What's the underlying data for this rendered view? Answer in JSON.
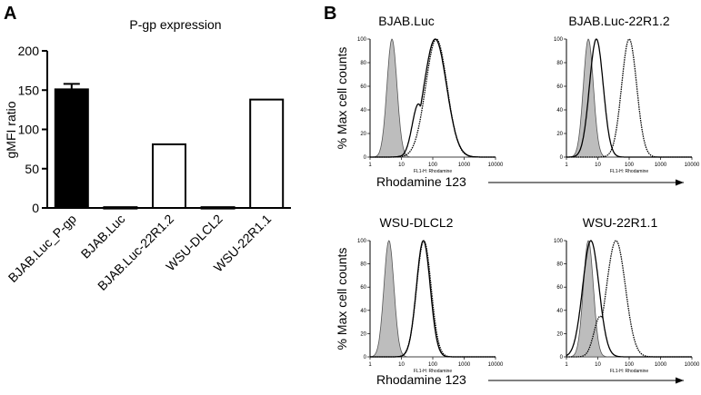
{
  "panels": {
    "a": "A",
    "b": "B"
  },
  "chart_data": [
    {
      "type": "bar",
      "title": "P-gp expression",
      "ylabel": "gMFI ratio",
      "xlabel": "",
      "categories": [
        "BJAB.Luc_P-gp",
        "BJAB.Luc",
        "BJAB.Luc-22R1.2",
        "WSU-DLCL2",
        "WSU-22R1.1"
      ],
      "values": [
        151,
        1,
        81,
        1,
        138
      ],
      "error": [
        7,
        0,
        0,
        0,
        0
      ],
      "fills": [
        "#000000",
        "#ffffff",
        "#ffffff",
        "#ffffff",
        "#ffffff"
      ],
      "ylim": [
        0,
        200
      ],
      "yticks": [
        0,
        50,
        100,
        150,
        200
      ],
      "grid": false
    },
    {
      "type": "area",
      "subtype": "flow-cytometry-histograms",
      "x_scale": "log",
      "xlim": [
        1,
        10000
      ],
      "xticks": [
        "1",
        "10",
        "100",
        "1000",
        "10000"
      ],
      "ylim": [
        0,
        100
      ],
      "yticks": [
        "0",
        "20",
        "40",
        "60",
        "80",
        "100"
      ],
      "ylabel": "% Max cell counts",
      "xlabel": "Rhodamine 123",
      "inner_xlabel": "FL1-H: Rhodamine",
      "colors": {
        "shaded": "#bdbdbd",
        "line": "#000000"
      },
      "histograms": [
        {
          "title": "BJAB.Luc",
          "shaded_peak": 5,
          "solid_peak": 120,
          "solid_width": 0.36,
          "shoulder": {
            "x": 35,
            "level": 0.45
          },
          "dotted_peak": 130,
          "dotted_width": 0.34
        },
        {
          "title": "BJAB.Luc-22R1.2",
          "shaded_peak": 5,
          "solid_peak": 9,
          "solid_width": 0.22,
          "dotted_peak": 100,
          "dotted_width": 0.24
        },
        {
          "title": "WSU-DLCL2",
          "shaded_peak": 4,
          "solid_peak": 50,
          "solid_width": 0.22,
          "dotted_peak": 52,
          "dotted_width": 0.23
        },
        {
          "title": "WSU-22R1.1",
          "shaded_peak": 5,
          "solid_peak": 6,
          "solid_width": 0.26,
          "dotted_peak": 38,
          "dotted_width": 0.3,
          "dotted_shoulder": {
            "x": 12,
            "level": 0.35
          }
        }
      ]
    }
  ]
}
